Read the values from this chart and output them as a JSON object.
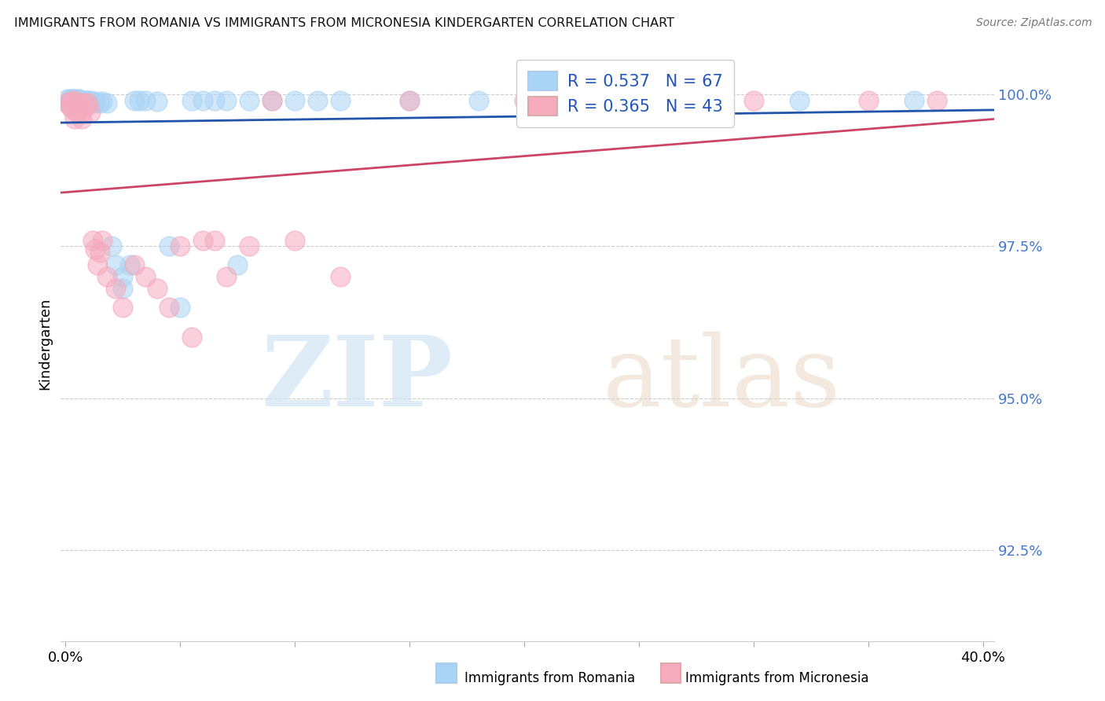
{
  "title": "IMMIGRANTS FROM ROMANIA VS IMMIGRANTS FROM MICRONESIA KINDERGARTEN CORRELATION CHART",
  "source": "Source: ZipAtlas.com",
  "ylabel": "Kindergarten",
  "ytick_labels": [
    "92.5%",
    "95.0%",
    "97.5%",
    "100.0%"
  ],
  "ytick_values": [
    0.925,
    0.95,
    0.975,
    1.0
  ],
  "xlim": [
    -0.002,
    0.405
  ],
  "ylim": [
    0.91,
    1.008
  ],
  "legend_romania_R": "0.537",
  "legend_romania_N": "67",
  "legend_micronesia_R": "0.365",
  "legend_micronesia_N": "43",
  "color_romania": "#aad4f5",
  "color_micronesia": "#f5aabe",
  "line_color_romania": "#2255aa",
  "line_color_micronesia": "#cc4466",
  "watermark_zip": "ZIP",
  "watermark_atlas": "atlas",
  "background_color": "#ffffff",
  "romania_x": [
    0.001,
    0.001,
    0.002,
    0.002,
    0.002,
    0.002,
    0.003,
    0.003,
    0.003,
    0.003,
    0.003,
    0.004,
    0.004,
    0.004,
    0.004,
    0.004,
    0.004,
    0.005,
    0.005,
    0.005,
    0.005,
    0.006,
    0.006,
    0.006,
    0.006,
    0.007,
    0.007,
    0.007,
    0.008,
    0.008,
    0.009,
    0.009,
    0.01,
    0.01,
    0.011,
    0.012,
    0.013,
    0.015,
    0.016,
    0.018,
    0.02,
    0.022,
    0.025,
    0.025,
    0.028,
    0.03,
    0.032,
    0.035,
    0.04,
    0.045,
    0.05,
    0.055,
    0.06,
    0.065,
    0.07,
    0.075,
    0.08,
    0.09,
    0.1,
    0.11,
    0.12,
    0.15,
    0.18,
    0.22,
    0.26,
    0.32,
    0.37
  ],
  "romania_y": [
    0.9992,
    0.9985,
    0.999,
    0.9988,
    0.9992,
    0.9985,
    0.999,
    0.9988,
    0.9985,
    0.9992,
    0.9988,
    0.999,
    0.9988,
    0.9985,
    0.9992,
    0.9988,
    0.9985,
    0.999,
    0.9988,
    0.9992,
    0.9985,
    0.999,
    0.9988,
    0.9985,
    0.9992,
    0.999,
    0.9988,
    0.9985,
    0.999,
    0.9985,
    0.999,
    0.9985,
    0.999,
    0.9985,
    0.999,
    0.9985,
    0.9988,
    0.9985,
    0.9988,
    0.9985,
    0.975,
    0.972,
    0.97,
    0.968,
    0.972,
    0.999,
    0.999,
    0.999,
    0.9988,
    0.975,
    0.965,
    0.999,
    0.999,
    0.999,
    0.999,
    0.972,
    0.999,
    0.999,
    0.999,
    0.999,
    0.999,
    0.999,
    0.999,
    0.999,
    0.999,
    0.999,
    0.999
  ],
  "micronesia_x": [
    0.001,
    0.002,
    0.002,
    0.003,
    0.003,
    0.004,
    0.004,
    0.005,
    0.005,
    0.006,
    0.007,
    0.007,
    0.008,
    0.009,
    0.01,
    0.011,
    0.012,
    0.013,
    0.014,
    0.015,
    0.016,
    0.018,
    0.022,
    0.025,
    0.03,
    0.035,
    0.04,
    0.045,
    0.05,
    0.055,
    0.06,
    0.065,
    0.07,
    0.08,
    0.09,
    0.1,
    0.12,
    0.15,
    0.2,
    0.25,
    0.3,
    0.35,
    0.38
  ],
  "micronesia_y": [
    0.9985,
    0.9988,
    0.998,
    0.9985,
    0.9975,
    0.999,
    0.996,
    0.9985,
    0.997,
    0.998,
    0.9972,
    0.996,
    0.9985,
    0.998,
    0.9985,
    0.997,
    0.976,
    0.9745,
    0.972,
    0.974,
    0.976,
    0.97,
    0.968,
    0.965,
    0.972,
    0.97,
    0.968,
    0.965,
    0.975,
    0.96,
    0.976,
    0.976,
    0.97,
    0.975,
    0.999,
    0.976,
    0.97,
    0.999,
    0.999,
    0.999,
    0.999,
    0.999,
    0.999
  ]
}
